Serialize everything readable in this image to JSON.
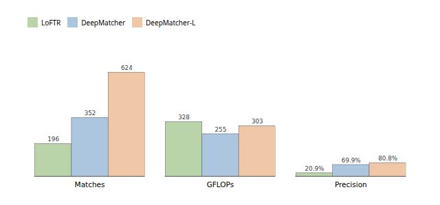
{
  "chart_data": {
    "type": "bar",
    "categories": [
      "Matches",
      "GFLOPs",
      "Precision"
    ],
    "series": [
      {
        "name": "LoFTR",
        "color": "#b8d4a8",
        "values": [
          196,
          328,
          20.9
        ],
        "value_labels": [
          "196",
          "328",
          "20.9%"
        ]
      },
      {
        "name": "DeepMatcher",
        "color": "#adc6e0",
        "values": [
          352,
          255,
          69.9
        ],
        "value_labels": [
          "352",
          "255",
          "69.9%"
        ]
      },
      {
        "name": "DeepMatcher-L",
        "color": "#f0c8a8",
        "values": [
          624,
          303,
          80.8
        ],
        "value_labels": [
          "624",
          "303",
          "80.8%"
        ]
      }
    ],
    "ylim": [
      0,
      756
    ],
    "tick_labels": "x",
    "data_labels": true,
    "legend": "top",
    "grid": false
  }
}
